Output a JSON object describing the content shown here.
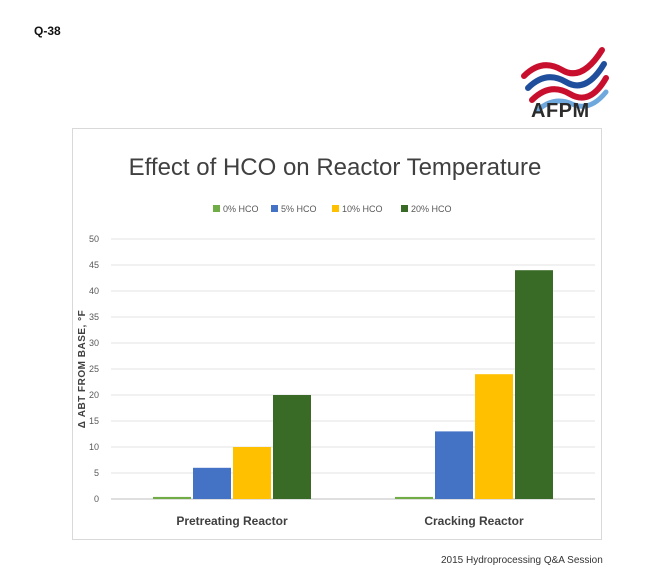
{
  "page": {
    "question_label": "Q-38",
    "logo_text": "AFPM",
    "footer_text": "2015 Hydroprocessing Q&A Session"
  },
  "chart_data": {
    "type": "bar",
    "title": "Effect of HCO on Reactor Temperature",
    "xlabel": "",
    "ylabel": "Δ ABT FROM BASE, °F",
    "categories": [
      "Pretreating Reactor",
      "Cracking Reactor"
    ],
    "series": [
      {
        "name": "0% HCO",
        "values": [
          0.4,
          0.4
        ],
        "color": "#70ad47"
      },
      {
        "name": "5% HCO",
        "values": [
          6,
          13
        ],
        "color": "#4472c4"
      },
      {
        "name": "10% HCO",
        "values": [
          10,
          24
        ],
        "color": "#ffc000"
      },
      {
        "name": "20% HCO",
        "values": [
          20,
          44
        ],
        "color": "#3a6b26"
      }
    ],
    "ylim": [
      0,
      50
    ],
    "yticks": [
      0,
      5,
      10,
      15,
      20,
      25,
      30,
      35,
      40,
      45,
      50
    ],
    "grid": true,
    "legend_position": "top"
  }
}
